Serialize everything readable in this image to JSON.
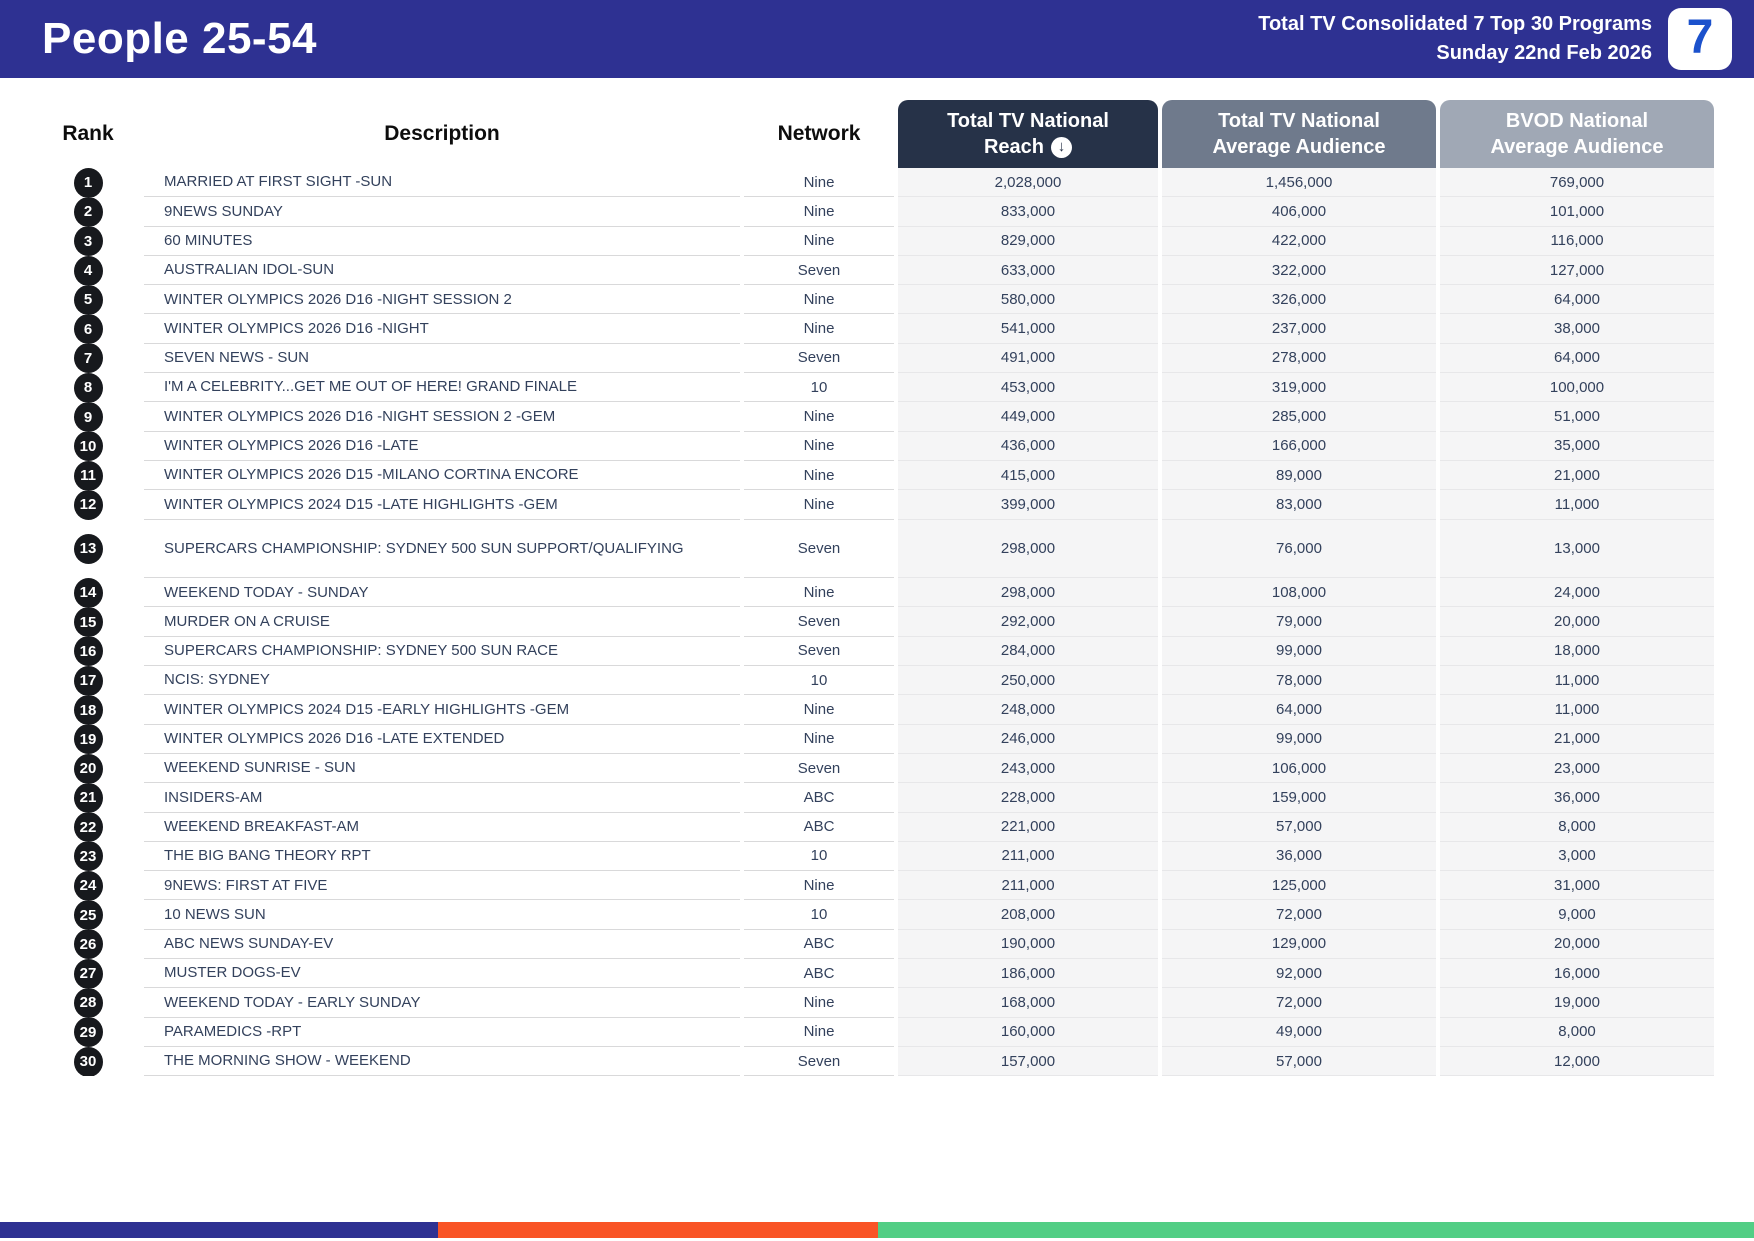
{
  "header": {
    "title": "People 25-54",
    "report_title": "Total TV Consolidated 7 Top 30 Programs",
    "report_date": "Sunday 22nd Feb 2026",
    "logo_text": "7"
  },
  "colors": {
    "banner_blue": "#2e3192",
    "reach_header_navy": "#263248",
    "avg_header_gray": "#6f7a8c",
    "bvod_header_gray": "#a0a8b5",
    "footer_blue": "#2e3192",
    "footer_orange": "#f95426",
    "footer_green": "#52ce85",
    "rank_badge_black": "#17191d"
  },
  "table": {
    "columns": {
      "rank": "Rank",
      "description": "Description",
      "network": "Network",
      "reach_line1": "Total TV National",
      "reach_line2": "Reach",
      "avg_line1": "Total TV National",
      "avg_line2": "Average Audience",
      "bvod_line1": "BVOD National",
      "bvod_line2": "Average Audience"
    },
    "sort_icon": "↓",
    "rows": [
      {
        "rank": "1",
        "description": "MARRIED AT FIRST SIGHT -SUN",
        "network": "Nine",
        "reach": "2,028,000",
        "avg_audience": "1,456,000",
        "bvod_avg_audience": "769,000"
      },
      {
        "rank": "2",
        "description": "9NEWS SUNDAY",
        "network": "Nine",
        "reach": "833,000",
        "avg_audience": "406,000",
        "bvod_avg_audience": "101,000"
      },
      {
        "rank": "3",
        "description": "60 MINUTES",
        "network": "Nine",
        "reach": "829,000",
        "avg_audience": "422,000",
        "bvod_avg_audience": "116,000"
      },
      {
        "rank": "4",
        "description": "AUSTRALIAN IDOL-SUN",
        "network": "Seven",
        "reach": "633,000",
        "avg_audience": "322,000",
        "bvod_avg_audience": "127,000"
      },
      {
        "rank": "5",
        "description": "WINTER OLYMPICS 2026 D16 -NIGHT SESSION 2",
        "network": "Nine",
        "reach": "580,000",
        "avg_audience": "326,000",
        "bvod_avg_audience": "64,000"
      },
      {
        "rank": "6",
        "description": "WINTER OLYMPICS 2026 D16 -NIGHT",
        "network": "Nine",
        "reach": "541,000",
        "avg_audience": "237,000",
        "bvod_avg_audience": "38,000"
      },
      {
        "rank": "7",
        "description": "SEVEN NEWS - SUN",
        "network": "Seven",
        "reach": "491,000",
        "avg_audience": "278,000",
        "bvod_avg_audience": "64,000"
      },
      {
        "rank": "8",
        "description": "I'M A CELEBRITY...GET ME OUT OF HERE! GRAND FINALE",
        "network": "10",
        "reach": "453,000",
        "avg_audience": "319,000",
        "bvod_avg_audience": "100,000"
      },
      {
        "rank": "9",
        "description": "WINTER OLYMPICS 2026 D16 -NIGHT SESSION 2 -GEM",
        "network": "Nine",
        "reach": "449,000",
        "avg_audience": "285,000",
        "bvod_avg_audience": "51,000"
      },
      {
        "rank": "10",
        "description": "WINTER OLYMPICS 2026 D16 -LATE",
        "network": "Nine",
        "reach": "436,000",
        "avg_audience": "166,000",
        "bvod_avg_audience": "35,000"
      },
      {
        "rank": "11",
        "description": "WINTER OLYMPICS 2026 D15 -MILANO CORTINA ENCORE",
        "network": "Nine",
        "reach": "415,000",
        "avg_audience": "89,000",
        "bvod_avg_audience": "21,000"
      },
      {
        "rank": "12",
        "description": "WINTER OLYMPICS 2024 D15 -LATE HIGHLIGHTS -GEM",
        "network": "Nine",
        "reach": "399,000",
        "avg_audience": "83,000",
        "bvod_avg_audience": "11,000"
      },
      {
        "rank": "13",
        "description": "SUPERCARS CHAMPIONSHIP: SYDNEY 500 SUN SUPPORT/QUALIFYING",
        "network": "Seven",
        "reach": "298,000",
        "avg_audience": "76,000",
        "bvod_avg_audience": "13,000",
        "two_line": true
      },
      {
        "rank": "14",
        "description": "WEEKEND TODAY - SUNDAY",
        "network": "Nine",
        "reach": "298,000",
        "avg_audience": "108,000",
        "bvod_avg_audience": "24,000"
      },
      {
        "rank": "15",
        "description": "MURDER ON A CRUISE",
        "network": "Seven",
        "reach": "292,000",
        "avg_audience": "79,000",
        "bvod_avg_audience": "20,000"
      },
      {
        "rank": "16",
        "description": "SUPERCARS CHAMPIONSHIP: SYDNEY 500 SUN RACE",
        "network": "Seven",
        "reach": "284,000",
        "avg_audience": "99,000",
        "bvod_avg_audience": "18,000"
      },
      {
        "rank": "17",
        "description": "NCIS: SYDNEY",
        "network": "10",
        "reach": "250,000",
        "avg_audience": "78,000",
        "bvod_avg_audience": "11,000"
      },
      {
        "rank": "18",
        "description": "WINTER OLYMPICS 2024 D15 -EARLY HIGHLIGHTS -GEM",
        "network": "Nine",
        "reach": "248,000",
        "avg_audience": "64,000",
        "bvod_avg_audience": "11,000"
      },
      {
        "rank": "19",
        "description": "WINTER OLYMPICS 2026 D16 -LATE EXTENDED",
        "network": "Nine",
        "reach": "246,000",
        "avg_audience": "99,000",
        "bvod_avg_audience": "21,000"
      },
      {
        "rank": "20",
        "description": "WEEKEND SUNRISE - SUN",
        "network": "Seven",
        "reach": "243,000",
        "avg_audience": "106,000",
        "bvod_avg_audience": "23,000"
      },
      {
        "rank": "21",
        "description": "INSIDERS-AM",
        "network": "ABC",
        "reach": "228,000",
        "avg_audience": "159,000",
        "bvod_avg_audience": "36,000"
      },
      {
        "rank": "22",
        "description": "WEEKEND BREAKFAST-AM",
        "network": "ABC",
        "reach": "221,000",
        "avg_audience": "57,000",
        "bvod_avg_audience": "8,000"
      },
      {
        "rank": "23",
        "description": "THE BIG BANG THEORY RPT",
        "network": "10",
        "reach": "211,000",
        "avg_audience": "36,000",
        "bvod_avg_audience": "3,000"
      },
      {
        "rank": "24",
        "description": "9NEWS: FIRST AT FIVE",
        "network": "Nine",
        "reach": "211,000",
        "avg_audience": "125,000",
        "bvod_avg_audience": "31,000"
      },
      {
        "rank": "25",
        "description": "10 NEWS SUN",
        "network": "10",
        "reach": "208,000",
        "avg_audience": "72,000",
        "bvod_avg_audience": "9,000"
      },
      {
        "rank": "26",
        "description": "ABC NEWS SUNDAY-EV",
        "network": "ABC",
        "reach": "190,000",
        "avg_audience": "129,000",
        "bvod_avg_audience": "20,000"
      },
      {
        "rank": "27",
        "description": "MUSTER DOGS-EV",
        "network": "ABC",
        "reach": "186,000",
        "avg_audience": "92,000",
        "bvod_avg_audience": "16,000"
      },
      {
        "rank": "28",
        "description": "WEEKEND TODAY - EARLY SUNDAY",
        "network": "Nine",
        "reach": "168,000",
        "avg_audience": "72,000",
        "bvod_avg_audience": "19,000"
      },
      {
        "rank": "29",
        "description": "PARAMEDICS -RPT",
        "network": "Nine",
        "reach": "160,000",
        "avg_audience": "49,000",
        "bvod_avg_audience": "8,000"
      },
      {
        "rank": "30",
        "description": "THE MORNING SHOW - WEEKEND",
        "network": "Seven",
        "reach": "157,000",
        "avg_audience": "57,000",
        "bvod_avg_audience": "12,000"
      }
    ]
  }
}
